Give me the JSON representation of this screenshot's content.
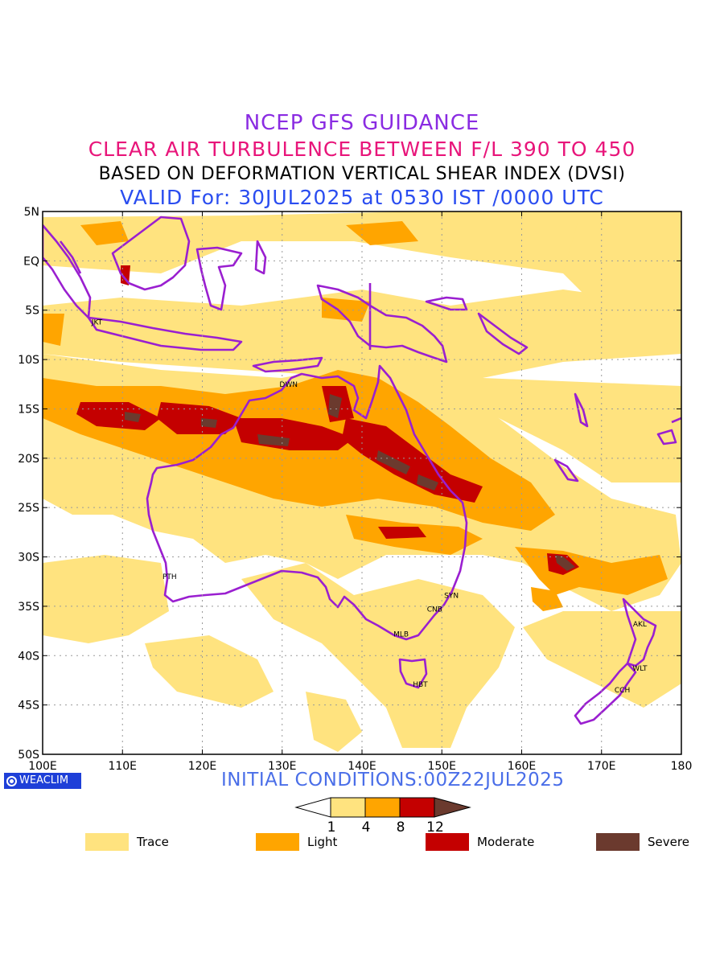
{
  "header": {
    "line1": "NCEP GFS GUIDANCE",
    "line2": "CLEAR AIR TURBULENCE BETWEEN F/L 390 TO 450",
    "line3": "BASED ON DEFORMATION VERTICAL SHEAR INDEX (DVSI)",
    "line4": "VALID For: 30JUL2025 at 0530 IST /0000 UTC"
  },
  "colors": {
    "line1": "#8a2be2",
    "line2": "#e8157a",
    "line3": "#000000",
    "line4": "#2a4df0",
    "coast": "#9a1fd0",
    "trace": "#ffe37f",
    "light": "#ffa500",
    "moderate": "#c40000",
    "severe": "#6b3a2e",
    "initcond": "#4a6ee8",
    "badge": "#1e3fd8"
  },
  "map": {
    "lon_range": [
      100,
      180
    ],
    "lat_range": [
      -50,
      5
    ],
    "x_ticks": [
      "100E",
      "110E",
      "120E",
      "130E",
      "140E",
      "150E",
      "160E",
      "170E",
      "180"
    ],
    "y_ticks": [
      "5N",
      "EQ",
      "5S",
      "10S",
      "15S",
      "20S",
      "25S",
      "30S",
      "35S",
      "40S",
      "45S",
      "50S"
    ],
    "grid": true,
    "stations": [
      {
        "code": "JKT",
        "lon": 106.8,
        "lat": -6.2
      },
      {
        "code": "DWN",
        "lon": 130.8,
        "lat": -12.5
      },
      {
        "code": "PTH",
        "lon": 115.9,
        "lat": -32.0
      },
      {
        "code": "SYN",
        "lon": 151.2,
        "lat": -33.9
      },
      {
        "code": "CNB",
        "lon": 149.1,
        "lat": -35.3
      },
      {
        "code": "MLB",
        "lon": 144.9,
        "lat": -37.8
      },
      {
        "code": "HBT",
        "lon": 147.3,
        "lat": -42.9
      },
      {
        "code": "AKL",
        "lon": 174.8,
        "lat": -36.8
      },
      {
        "code": "WLT",
        "lon": 174.8,
        "lat": -41.3
      },
      {
        "code": "CCH",
        "lon": 172.6,
        "lat": -43.5
      }
    ]
  },
  "footer": {
    "badge": "WEACLIM",
    "initial": "INITIAL CONDITIONS:00Z22JUL2025"
  },
  "colorbar": {
    "levels": [
      "1",
      "4",
      "8",
      "12"
    ]
  },
  "legend": [
    {
      "label": "Trace",
      "color": "#ffe37f"
    },
    {
      "label": "Light",
      "color": "#ffa500"
    },
    {
      "label": "Moderate",
      "color": "#c40000"
    },
    {
      "label": "Severe",
      "color": "#6b3a2e"
    }
  ]
}
